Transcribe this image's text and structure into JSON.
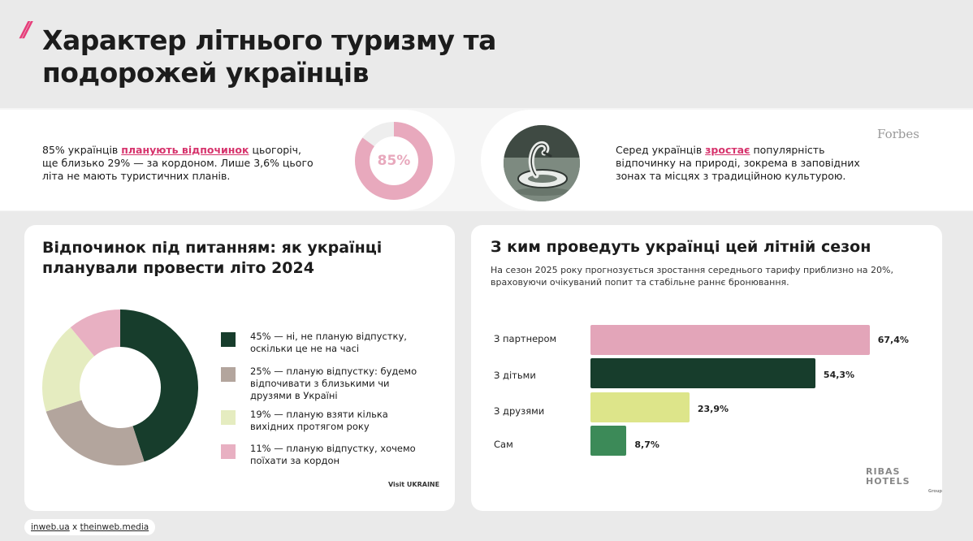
{
  "header": {
    "slash": "//",
    "title": "Характер літнього туризму та подорожей українців"
  },
  "intro": {
    "text_before": "85% українців ",
    "highlight": "планують відпочинок",
    "text_after": " цьогоріч, ще близько 29% — за кордоном. Лише 3,6% цього літа не мають туристичних планів.",
    "ring_value_label": "85%",
    "ring_value": 85,
    "ring_color": "#e8a9bd",
    "ring_track_color": "#eeeeee"
  },
  "nature": {
    "text_before": "Серед українців ",
    "highlight": "зростає",
    "text_after": " популярність відпочинку на природі, зокрема в заповідних зонах та місцях з традиційною культурою.",
    "source_logo": "Forbes"
  },
  "chart_data": [
    {
      "type": "pie",
      "title": "Відпочинок під питанням: як українці планували провести літо 2024",
      "slices": [
        {
          "value": 45,
          "label": "45% — ні, не планую відпустку, оскільки це не на часі",
          "color": "#173d2c"
        },
        {
          "value": 25,
          "label": "25% — планую відпустку: будемо відпочивати з близькими чи друзями в Україні",
          "color": "#b3a59d"
        },
        {
          "value": 19,
          "label": "19% — планую взяти кілька вихідних протягом року",
          "color": "#e5ecc0"
        },
        {
          "value": 11,
          "label": "11% — планую відпустку, хочемо поїхати за кордон",
          "color": "#e8b0c2"
        }
      ],
      "donut": true,
      "legend_position": "right"
    },
    {
      "type": "bar",
      "orientation": "horizontal",
      "title": "З ким проведуть українці цей літній сезон",
      "subtitle": "На сезон 2025 року прогнозується зростання середнього тарифу приблизно на 20%, враховуючи очікуваний попит та стабільне раннє бронювання.",
      "categories": [
        "З партнером",
        "З дітьми",
        "З друзями",
        "Сам"
      ],
      "values": [
        67.4,
        54.3,
        23.9,
        8.7
      ],
      "value_labels": [
        "67,4%",
        "54,3%",
        "23,9%",
        "8,7%"
      ],
      "colors": [
        "#e3a5b9",
        "#173d2c",
        "#dde58a",
        "#3c8a58"
      ],
      "xlim": [
        0,
        70
      ]
    }
  ],
  "logos": {
    "visit_ukraine": "Visit UKRAINE",
    "ribas": "RIBAS HOTELS",
    "ribas_sub": "Group"
  },
  "footer": {
    "site1": "inweb.ua",
    "sep": " x ",
    "site2": "theinweb.media"
  }
}
